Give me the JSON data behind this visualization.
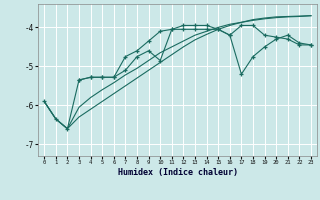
{
  "xlabel": "Humidex (Indice chaleur)",
  "bg_color": "#cce8e8",
  "grid_color": "#b8d8d8",
  "line_color": "#1a6b60",
  "xlim": [
    -0.5,
    23.5
  ],
  "ylim": [
    -7.3,
    -3.4
  ],
  "yticks": [
    -7,
    -6,
    -5,
    -4
  ],
  "xticks": [
    0,
    1,
    2,
    3,
    4,
    5,
    6,
    7,
    8,
    9,
    10,
    11,
    12,
    13,
    14,
    15,
    16,
    17,
    18,
    19,
    20,
    21,
    22,
    23
  ],
  "s1_x": [
    0,
    1,
    2,
    3,
    4,
    5,
    6,
    7,
    8,
    9,
    10,
    11,
    12,
    13,
    14,
    15,
    16,
    17,
    18,
    19,
    20,
    21,
    22,
    23
  ],
  "s1_y": [
    -5.9,
    -6.35,
    -6.6,
    -5.35,
    -5.28,
    -5.28,
    -5.28,
    -4.75,
    -4.6,
    -4.35,
    -4.1,
    -4.05,
    -3.95,
    -3.95,
    -3.95,
    -4.05,
    -4.2,
    -3.95,
    -3.95,
    -4.2,
    -4.25,
    -4.3,
    -4.45,
    -4.45
  ],
  "s2_x": [
    3,
    4,
    5,
    6,
    7,
    8,
    9,
    10,
    11,
    12,
    13,
    14,
    15,
    16,
    17,
    18,
    19,
    20,
    21,
    22,
    23
  ],
  "s2_y": [
    -5.35,
    -5.28,
    -5.28,
    -5.28,
    -5.1,
    -4.75,
    -4.6,
    -4.85,
    -4.05,
    -4.05,
    -4.05,
    -4.05,
    -4.05,
    -4.2,
    -5.2,
    -4.75,
    -4.5,
    -4.3,
    -4.2,
    -4.4,
    -4.45
  ],
  "s3_x": [
    0,
    1,
    2,
    3,
    4,
    5,
    6,
    7,
    8,
    9,
    10,
    11,
    12,
    13,
    14,
    15,
    16,
    17,
    18,
    19,
    20,
    21,
    22,
    23
  ],
  "s3_y": [
    -5.9,
    -6.35,
    -6.6,
    -6.05,
    -5.8,
    -5.6,
    -5.42,
    -5.22,
    -5.05,
    -4.85,
    -4.65,
    -4.5,
    -4.35,
    -4.2,
    -4.1,
    -4.0,
    -3.92,
    -3.87,
    -3.82,
    -3.78,
    -3.75,
    -3.73,
    -3.72,
    -3.7
  ],
  "s4_x": [
    0,
    1,
    2,
    3,
    4,
    5,
    6,
    7,
    8,
    9,
    10,
    11,
    12,
    13,
    14,
    15,
    16,
    17,
    18,
    19,
    20,
    21,
    22,
    23
  ],
  "s4_y": [
    -5.9,
    -6.35,
    -6.6,
    -6.3,
    -6.1,
    -5.9,
    -5.7,
    -5.5,
    -5.3,
    -5.1,
    -4.9,
    -4.7,
    -4.5,
    -4.32,
    -4.18,
    -4.05,
    -3.95,
    -3.87,
    -3.8,
    -3.76,
    -3.73,
    -3.72,
    -3.71,
    -3.7
  ]
}
